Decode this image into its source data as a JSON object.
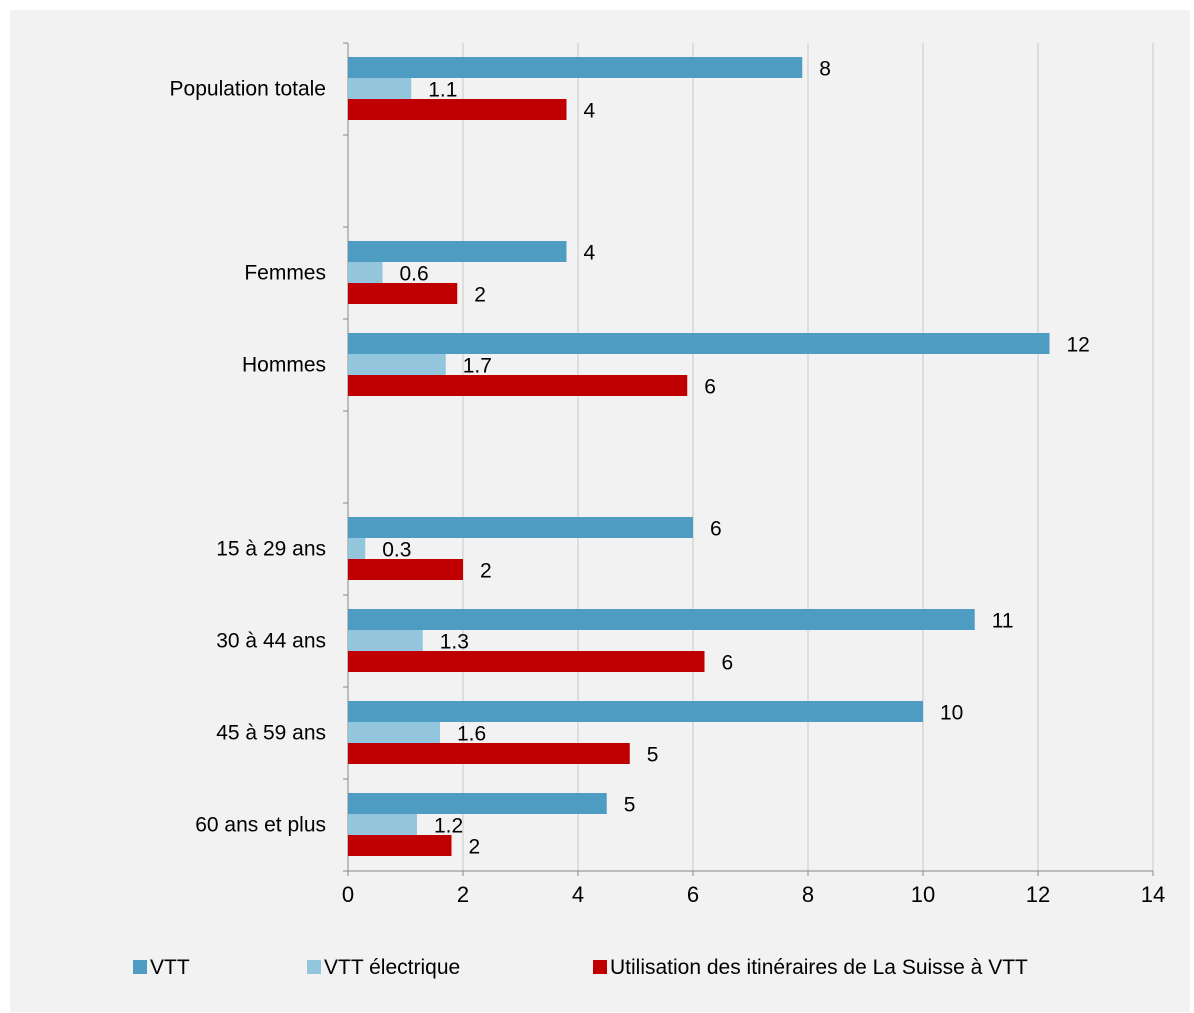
{
  "chart_data": {
    "type": "bar",
    "orientation": "horizontal",
    "categories": [
      "Population totale",
      "",
      "Femmes",
      "Hommes",
      "",
      "15 à 29 ans",
      "30 à 44 ans",
      "45 à 59 ans",
      "60 ans et plus"
    ],
    "series": [
      {
        "name": "VTT",
        "color": "#4f9cc3",
        "values": [
          8,
          null,
          4,
          12,
          null,
          6,
          11,
          10,
          5
        ],
        "plot_values": [
          7.9,
          null,
          3.8,
          12.2,
          null,
          6.0,
          10.9,
          10.0,
          4.5
        ],
        "labels": [
          "8",
          "",
          "4",
          "12",
          "",
          "6",
          "11",
          "10",
          "5"
        ]
      },
      {
        "name": "VTT électrique",
        "color": "#93c5dc",
        "values": [
          1.1,
          null,
          0.6,
          1.7,
          null,
          0.3,
          1.3,
          1.6,
          1.2
        ],
        "labels": [
          "1.1",
          "",
          "0.6",
          "1.7",
          "",
          "0.3",
          "1.3",
          "1.6",
          "1.2"
        ]
      },
      {
        "name": "Utilisation des itinéraires de La Suisse à VTT",
        "color": "#c00000",
        "values": [
          4,
          null,
          2,
          6,
          null,
          2,
          6,
          5,
          2
        ],
        "plot_values": [
          3.8,
          null,
          1.9,
          5.9,
          null,
          2.0,
          6.2,
          4.9,
          1.8
        ],
        "labels": [
          "4",
          "",
          "2",
          "6",
          "",
          "2",
          "6",
          "5",
          "2"
        ]
      }
    ],
    "xlim": [
      0,
      14
    ],
    "x_ticks": [
      "0",
      "2",
      "4",
      "6",
      "8",
      "10",
      "12",
      "14"
    ],
    "grid": true,
    "legend_position": "bottom"
  }
}
